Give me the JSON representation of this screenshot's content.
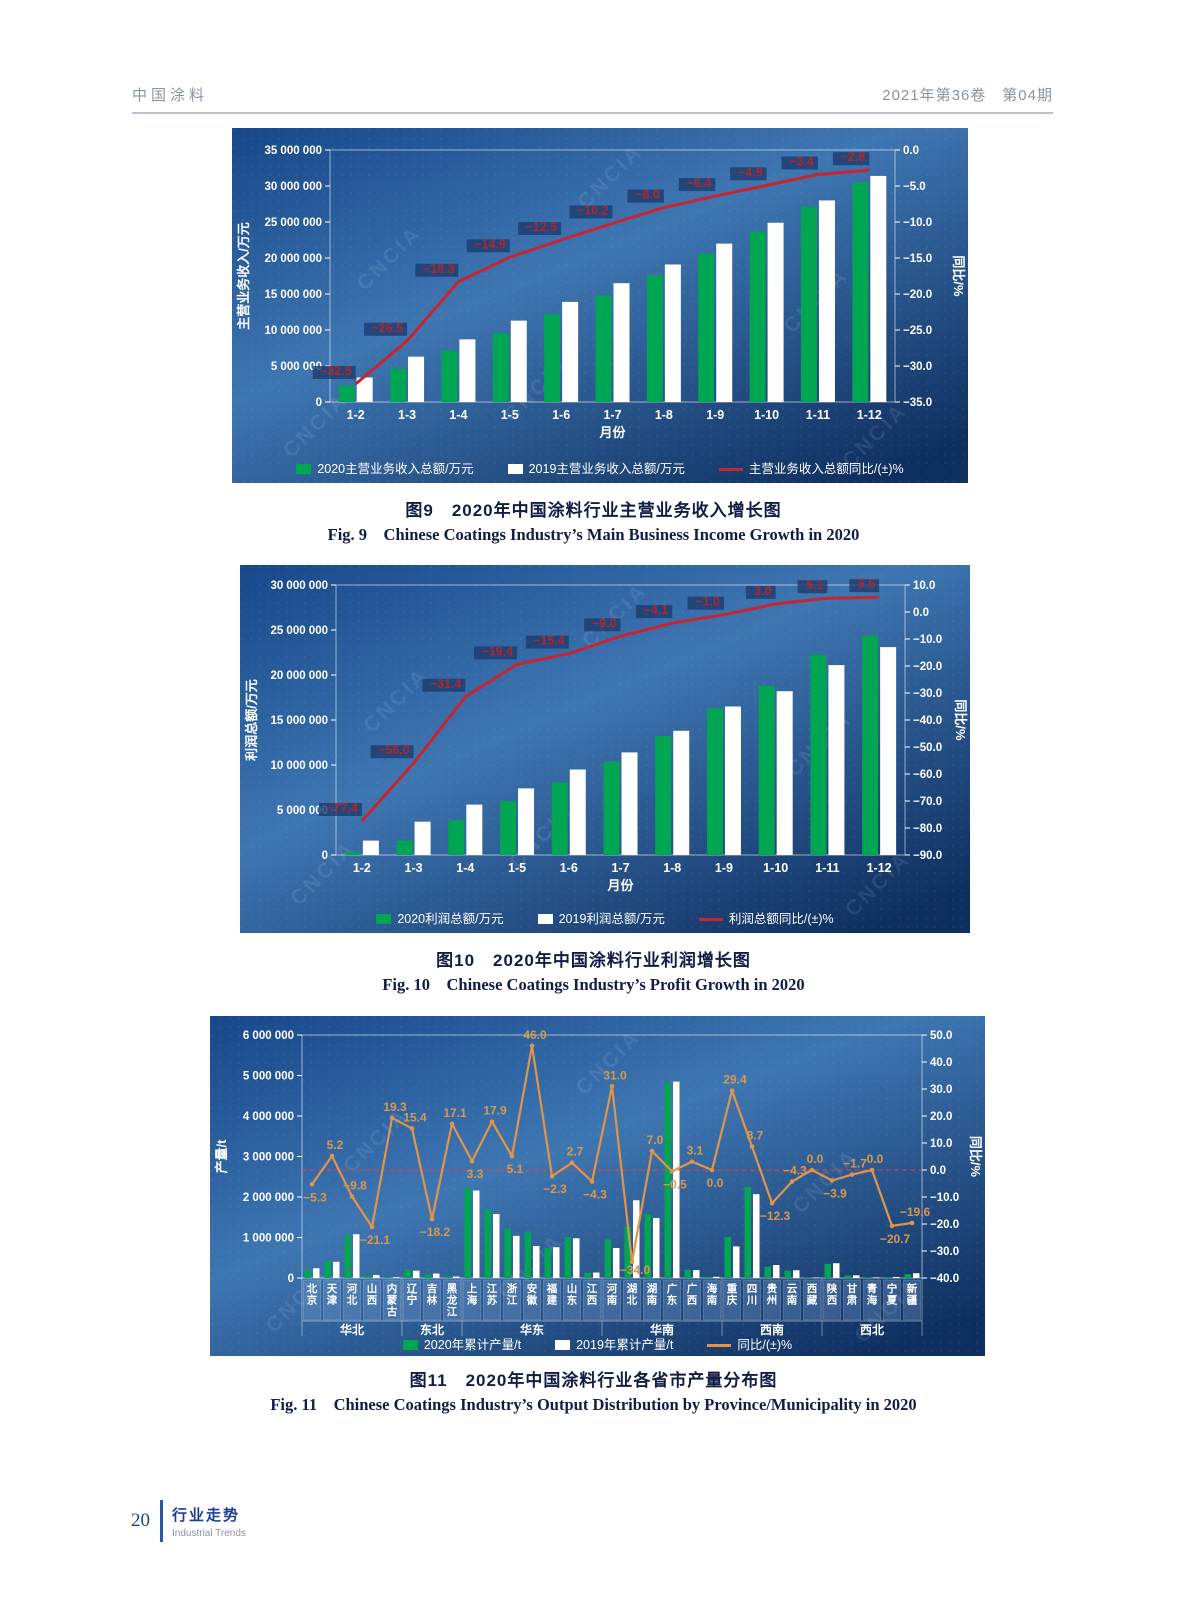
{
  "header": {
    "journal": "中国涂料",
    "issue": "2021年第36卷　第04期"
  },
  "footer": {
    "page_number": "20",
    "section_cn": "行业走势",
    "section_en": "Industrial Trends"
  },
  "watermark": "CNCIA",
  "colors": {
    "bar_2020": "#00a651",
    "bar_2019": "#ffffff",
    "line_red": "#c9252c",
    "line_orange": "#e0954a",
    "label_red": "#b0252e",
    "label_orange": "#d9994d",
    "panel_blue": "#14366b",
    "zero_dash_red": "#e04040"
  },
  "figures": [
    {
      "caption_cn": "图9　2020年中国涂料行业主营业务收入增长图",
      "caption_en": "Fig. 9　Chinese Coatings Industry’s Main Business Income Growth in 2020"
    },
    {
      "caption_cn": "图10　2020年中国涂料行业利润增长图",
      "caption_en": "Fig. 10　Chinese Coatings Industry’s Profit Growth in 2020"
    },
    {
      "caption_cn": "图11　2020年中国涂料行业各省市产量分布图",
      "caption_en": "Fig. 11　Chinese Coatings Industry’s Output Distribution by Province/Municipality in 2020"
    }
  ],
  "chart_data": [
    {
      "type": "bar",
      "categories": [
        "1-2",
        "1-3",
        "1-4",
        "1-5",
        "1-6",
        "1-7",
        "1-8",
        "1-9",
        "1-10",
        "1-11",
        "1-12"
      ],
      "xlabel": "月份",
      "ylabel_left": "主营业务收入/万元",
      "ylabel_right": "同比/%",
      "axis_left": {
        "min": 0,
        "max": 35000000,
        "step": 5000000
      },
      "axis_right": {
        "min": -35,
        "max": 0,
        "step": 5
      },
      "zero_line_right": false,
      "series": [
        {
          "name": "2020主营业务收入总额/万元",
          "type": "bar",
          "color": "#00a651",
          "values": [
            2300000,
            4600000,
            7100000,
            9600000,
            12200000,
            14800000,
            17600000,
            20600000,
            23700000,
            27100000,
            30500000
          ]
        },
        {
          "name": "2019主营业务收入总额/万元",
          "type": "bar",
          "color": "#ffffff",
          "values": [
            3400000,
            6300000,
            8700000,
            11300000,
            13900000,
            16500000,
            19100000,
            22000000,
            24900000,
            28000000,
            31400000
          ]
        },
        {
          "name": "主营业务收入总额同比/(±)%",
          "type": "line",
          "axis": "right",
          "color": "#c9252c",
          "values": [
            -32.5,
            -26.5,
            -18.3,
            -14.9,
            -12.5,
            -10.2,
            -8.0,
            -6.4,
            -4.9,
            -3.4,
            -2.8
          ]
        }
      ]
    },
    {
      "type": "bar",
      "categories": [
        "1-2",
        "1-3",
        "1-4",
        "1-5",
        "1-6",
        "1-7",
        "1-8",
        "1-9",
        "1-10",
        "1-11",
        "1-12"
      ],
      "xlabel": "月份",
      "ylabel_left": "利润总额/万元",
      "ylabel_right": "同比/%",
      "axis_left": {
        "min": 0,
        "max": 30000000,
        "step": 5000000
      },
      "axis_right": {
        "min": -90,
        "max": 10,
        "step": 10
      },
      "zero_line_right": false,
      "series": [
        {
          "name": "2020利润总额/万元",
          "type": "bar",
          "color": "#00a651",
          "values": [
            350000,
            1600000,
            3850000,
            6000000,
            8050000,
            10400000,
            13200000,
            16300000,
            18800000,
            22200000,
            24400000
          ]
        },
        {
          "name": "2019利润总额/万元",
          "type": "bar",
          "color": "#ffffff",
          "values": [
            1600000,
            3700000,
            5600000,
            7400000,
            9500000,
            11400000,
            13800000,
            16500000,
            18200000,
            21100000,
            23100000
          ]
        },
        {
          "name": "利润总额同比/(±)%",
          "type": "line",
          "axis": "right",
          "color": "#c9252c",
          "values": [
            -77.4,
            -56.0,
            -31.4,
            -19.4,
            -15.4,
            -9.0,
            -4.1,
            -1.0,
            3.0,
            5.1,
            5.5
          ]
        }
      ]
    },
    {
      "type": "bar",
      "categories": [
        "北京",
        "天津",
        "河北",
        "山西",
        "内蒙古",
        "辽宁",
        "吉林",
        "黑龙江",
        "上海",
        "江苏",
        "浙江",
        "安徽",
        "福建",
        "山东",
        "江西",
        "河南",
        "湖北",
        "湖南",
        "广东",
        "广西",
        "海南",
        "重庆",
        "四川",
        "贵州",
        "云南",
        "西藏",
        "陕西",
        "甘肃",
        "青海",
        "宁夏",
        "新疆"
      ],
      "groups": [
        {
          "label": "华北",
          "count": 5
        },
        {
          "label": "东北",
          "count": 3
        },
        {
          "label": "华东",
          "count": 7
        },
        {
          "label": "华南",
          "count": 6
        },
        {
          "label": "西南",
          "count": 5
        },
        {
          "label": "西北",
          "count": 5
        }
      ],
      "xlabel": "",
      "ylabel_left": "产量/t",
      "ylabel_right": "同比/%",
      "axis_left": {
        "min": 0,
        "max": 6000000,
        "step": 1000000
      },
      "axis_right": {
        "min": -40,
        "max": 50,
        "step": 10
      },
      "zero_line_right": true,
      "series": [
        {
          "name": "2020年累计产量/t",
          "type": "bar",
          "color": "#00a651",
          "values": [
            200000,
            420000,
            1060000,
            60000,
            25000,
            210000,
            90000,
            40000,
            2230000,
            1700000,
            1230000,
            1150000,
            740000,
            1010000,
            130000,
            960000,
            1270000,
            1580000,
            4800000,
            200000,
            30000,
            1010000,
            2250000,
            280000,
            180000,
            10000,
            350000,
            65000,
            15000,
            20000,
            95000
          ]
        },
        {
          "name": "2019年累计产量/t",
          "type": "bar",
          "color": "#ffffff",
          "values": [
            240000,
            400000,
            1080000,
            75000,
            20000,
            180000,
            110000,
            35000,
            2160000,
            1580000,
            1040000,
            790000,
            760000,
            980000,
            135000,
            740000,
            1920000,
            1480000,
            4850000,
            195000,
            30000,
            780000,
            2070000,
            320000,
            190000,
            10000,
            365000,
            66000,
            15000,
            25000,
            118000
          ]
        },
        {
          "name": "同比/(±)%",
          "type": "line",
          "axis": "right",
          "color": "#e0954a",
          "values": [
            -5.3,
            5.2,
            -9.8,
            -21.1,
            19.3,
            15.4,
            -18.2,
            17.1,
            3.3,
            17.9,
            5.1,
            46.0,
            -2.3,
            2.7,
            -4.3,
            31.0,
            -34.0,
            7.0,
            -0.5,
            3.1,
            0.0,
            29.4,
            8.7,
            -12.3,
            -4.3,
            0.0,
            -3.9,
            -1.7,
            0.0,
            -20.7,
            -19.6
          ]
        }
      ]
    }
  ]
}
